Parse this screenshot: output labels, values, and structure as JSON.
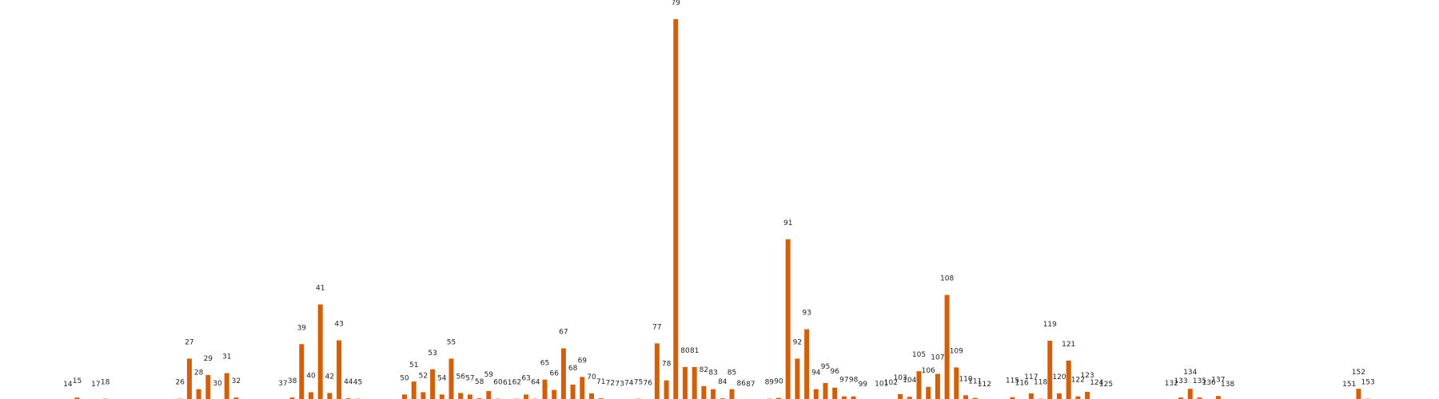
{
  "chart_data": {
    "type": "bar",
    "title": "",
    "xlabel": "",
    "ylabel": "",
    "axes_visible": false,
    "grid": false,
    "legend": "none",
    "ylim": [
      0,
      100
    ],
    "colors": {
      "bar": "#d2600a",
      "label": "#222222"
    },
    "points": [
      {
        "label": "14",
        "value": 0
      },
      {
        "label": "15",
        "value": 0.8
      },
      {
        "label": "17",
        "value": 0
      },
      {
        "label": "18",
        "value": 0.5
      },
      {
        "label": "26",
        "value": 0.5
      },
      {
        "label": "27",
        "value": 11
      },
      {
        "label": "28",
        "value": 3
      },
      {
        "label": "29",
        "value": 6.7
      },
      {
        "label": "30",
        "value": 0.2
      },
      {
        "label": "31",
        "value": 7.2
      },
      {
        "label": "32",
        "value": 0.8
      },
      {
        "label": "37",
        "value": 0.2
      },
      {
        "label": "38",
        "value": 0.8
      },
      {
        "label": "39",
        "value": 14.8
      },
      {
        "label": "40",
        "value": 2.2
      },
      {
        "label": "41",
        "value": 25.2
      },
      {
        "label": "42",
        "value": 2
      },
      {
        "label": "43",
        "value": 15.8
      },
      {
        "label": "44",
        "value": 0.6
      },
      {
        "label": "45",
        "value": 0.5
      },
      {
        "label": "50",
        "value": 1.6
      },
      {
        "label": "51",
        "value": 5
      },
      {
        "label": "52",
        "value": 2.2
      },
      {
        "label": "53",
        "value": 8.2
      },
      {
        "label": "54",
        "value": 1.6
      },
      {
        "label": "55",
        "value": 11
      },
      {
        "label": "56",
        "value": 2
      },
      {
        "label": "57",
        "value": 1.6
      },
      {
        "label": "58",
        "value": 0.6
      },
      {
        "label": "59",
        "value": 2.5
      },
      {
        "label": "60",
        "value": 0.5
      },
      {
        "label": "61",
        "value": 0.4
      },
      {
        "label": "62",
        "value": 0.5
      },
      {
        "label": "63",
        "value": 1.6
      },
      {
        "label": "64",
        "value": 0.5
      },
      {
        "label": "65",
        "value": 5.5
      },
      {
        "label": "66",
        "value": 2.8
      },
      {
        "label": "67",
        "value": 13.7
      },
      {
        "label": "68",
        "value": 4.2
      },
      {
        "label": "69",
        "value": 6.2
      },
      {
        "label": "70",
        "value": 1.9
      },
      {
        "label": "71",
        "value": 0.6
      },
      {
        "label": "72",
        "value": 0.3
      },
      {
        "label": "73",
        "value": 0.1
      },
      {
        "label": "74",
        "value": 0.3
      },
      {
        "label": "75",
        "value": 0.5
      },
      {
        "label": "76",
        "value": 0.3
      },
      {
        "label": "77",
        "value": 15
      },
      {
        "label": "78",
        "value": 5.3
      },
      {
        "label": "79",
        "value": 100
      },
      {
        "label": "80",
        "value": 8.8
      },
      {
        "label": "81",
        "value": 8.8
      },
      {
        "label": "82",
        "value": 3.8
      },
      {
        "label": "83",
        "value": 3
      },
      {
        "label": "84",
        "value": 0.6
      },
      {
        "label": "85",
        "value": 3
      },
      {
        "label": "86",
        "value": 0.2
      },
      {
        "label": "87",
        "value": 0
      },
      {
        "label": "89",
        "value": 0.5
      },
      {
        "label": "90",
        "value": 0.7
      },
      {
        "label": "91",
        "value": 42.3
      },
      {
        "label": "92",
        "value": 11
      },
      {
        "label": "93",
        "value": 18.7
      },
      {
        "label": "94",
        "value": 3
      },
      {
        "label": "95",
        "value": 4.6
      },
      {
        "label": "96",
        "value": 3.4
      },
      {
        "label": "97",
        "value": 1.1
      },
      {
        "label": "98",
        "value": 1.1
      },
      {
        "label": "99",
        "value": 0
      },
      {
        "label": "101",
        "value": 0.1
      },
      {
        "label": "102",
        "value": 0.4
      },
      {
        "label": "103",
        "value": 1.7
      },
      {
        "label": "104",
        "value": 1
      },
      {
        "label": "105",
        "value": 7.7
      },
      {
        "label": "106",
        "value": 3.6
      },
      {
        "label": "107",
        "value": 7
      },
      {
        "label": "108",
        "value": 27.7
      },
      {
        "label": "109",
        "value": 8.7
      },
      {
        "label": "110",
        "value": 1.4
      },
      {
        "label": "111",
        "value": 0.7
      },
      {
        "label": "112",
        "value": 0
      },
      {
        "label": "115",
        "value": 0.9
      },
      {
        "label": "116",
        "value": 0.3
      },
      {
        "label": "117",
        "value": 1.9
      },
      {
        "label": "118",
        "value": 0.5
      },
      {
        "label": "119",
        "value": 15.7
      },
      {
        "label": "120",
        "value": 1.9
      },
      {
        "label": "121",
        "value": 10.5
      },
      {
        "label": "122",
        "value": 1.1
      },
      {
        "label": "123",
        "value": 2.3
      },
      {
        "label": "124",
        "value": 0.4
      },
      {
        "label": "125",
        "value": 0
      },
      {
        "label": "132",
        "value": 0.2
      },
      {
        "label": "133",
        "value": 0.8
      },
      {
        "label": "134",
        "value": 3.1
      },
      {
        "label": "135",
        "value": 0.8
      },
      {
        "label": "136",
        "value": 0.4
      },
      {
        "label": "137",
        "value": 1.2
      },
      {
        "label": "138",
        "value": 0
      },
      {
        "label": "151",
        "value": 0
      },
      {
        "label": "152",
        "value": 3.1
      },
      {
        "label": "153",
        "value": 0.5
      }
    ]
  }
}
